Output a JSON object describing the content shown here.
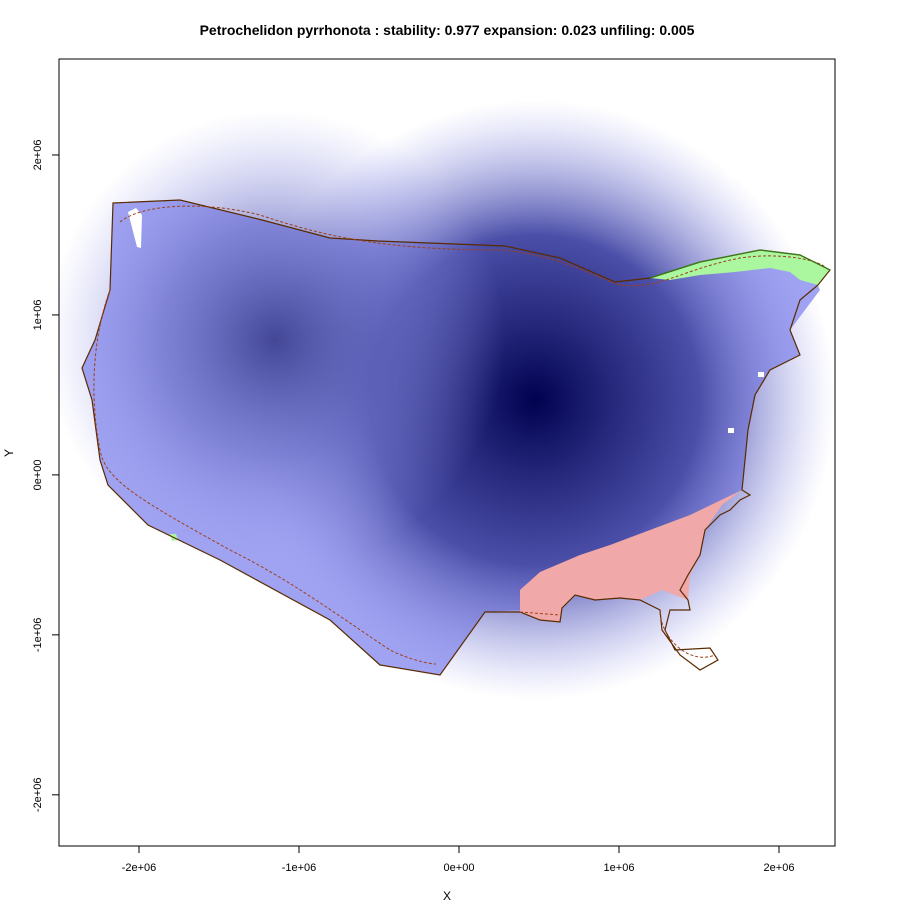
{
  "chart_data": {
    "type": "heatmap",
    "title": "Petrochelidon pyrrhonota : stability: 0.977 expansion: 0.023 unfiling: 0.005",
    "xlabel": "X",
    "ylabel": "Y",
    "xlim": [
      -2500000,
      2350000
    ],
    "ylim": [
      -2320000,
      2600000
    ],
    "x_ticks": [
      {
        "value": -2000000,
        "label": "-2e+06"
      },
      {
        "value": -1000000,
        "label": "-1e+06"
      },
      {
        "value": 0,
        "label": "0e+00"
      },
      {
        "value": 1000000,
        "label": "1e+06"
      },
      {
        "value": 2000000,
        "label": "2e+06"
      }
    ],
    "y_ticks": [
      {
        "value": -2000000,
        "label": "-2e+06"
      },
      {
        "value": -1000000,
        "label": "-1e+06"
      },
      {
        "value": 0,
        "label": "0e+00"
      },
      {
        "value": 1000000,
        "label": "1e+06"
      },
      {
        "value": 2000000,
        "label": "2e+06"
      }
    ],
    "grid": false,
    "legend": "none",
    "metrics": {
      "stability": 0.977,
      "expansion": 0.023,
      "unfiling": 0.005
    },
    "regions": {
      "stability_color": "#a0a3f2",
      "stability_peak_color": "#01014f",
      "expansion_color": "#aaf7a0",
      "unfilling_color": "#f0a8a8",
      "native_outline_color": "#5a2a00",
      "invaded_outline_color": "#3a7a1a",
      "kernel_density_contour_color": "#a0401a"
    },
    "density_peaks": [
      {
        "x": 500000,
        "y": 450000,
        "weight": 1.0
      },
      {
        "x": -1100000,
        "y": 800000,
        "weight": 0.55
      }
    ]
  }
}
